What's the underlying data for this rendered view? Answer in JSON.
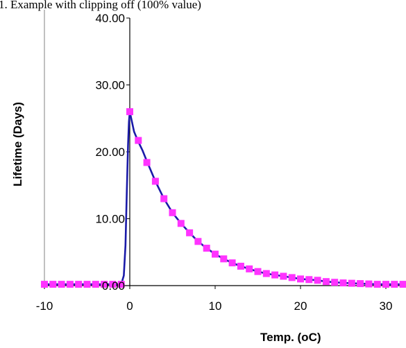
{
  "heading": "1. Example with clipping off (100% value)",
  "chart_data": {
    "type": "line",
    "title": "",
    "xlabel": "Temp. (oC)",
    "ylabel": "Lifetime (Days)",
    "xlim": [
      -10,
      32
    ],
    "ylim": [
      0,
      40
    ],
    "x_ticks": [
      {
        "value": -10,
        "label": "-10"
      },
      {
        "value": 0,
        "label": "0"
      },
      {
        "value": 10,
        "label": "10"
      },
      {
        "value": 20,
        "label": "20"
      },
      {
        "value": 30,
        "label": "30"
      }
    ],
    "y_ticks": [
      {
        "value": 0,
        "label": "0.00"
      },
      {
        "value": 10,
        "label": "10.00"
      },
      {
        "value": 20,
        "label": "20.00"
      },
      {
        "value": 30,
        "label": "30.00"
      },
      {
        "value": 40,
        "label": "40.00"
      }
    ],
    "grid": false,
    "legend": "none",
    "line_color": "#1a1aa8",
    "marker_color": "#ff33ff",
    "series": [
      {
        "line_x": [
          -10,
          -9,
          -8,
          -7,
          -6,
          -5,
          -4,
          -3,
          -2,
          -1,
          -0.7,
          -0.5,
          -0.35,
          -0.2,
          -0.1,
          0,
          0.25,
          0.5,
          1,
          1.5,
          2,
          3,
          4,
          5,
          6,
          7,
          8,
          9,
          10,
          11,
          12,
          13,
          14,
          15,
          16,
          17,
          18,
          19,
          20,
          21,
          22,
          23,
          24,
          25,
          26,
          27,
          28,
          29,
          30,
          31,
          32
        ],
        "line_y": [
          0.2,
          0.2,
          0.2,
          0.2,
          0.2,
          0.2,
          0.2,
          0.2,
          0.2,
          0.2,
          1.5,
          6,
          14,
          21,
          24.5,
          26,
          24.5,
          23,
          21.5,
          20.2,
          18.6,
          15.6,
          13.0,
          10.9,
          9.3,
          7.9,
          6.6,
          5.6,
          4.7,
          4.0,
          3.4,
          2.9,
          2.5,
          2.1,
          1.8,
          1.6,
          1.4,
          1.2,
          1.0,
          0.9,
          0.8,
          0.6,
          0.5,
          0.4,
          0.35,
          0.3,
          0.25,
          0.2,
          0.2,
          0.2,
          0.2
        ],
        "marker_x": [
          -10,
          -9,
          -8,
          -7,
          -6,
          -5,
          -4,
          -3,
          -2,
          -1,
          0,
          1,
          2,
          3,
          4,
          5,
          6,
          7,
          8,
          9,
          10,
          11,
          12,
          13,
          14,
          15,
          16,
          17,
          18,
          19,
          20,
          21,
          22,
          23,
          24,
          25,
          26,
          27,
          28,
          29,
          30,
          31,
          32
        ],
        "marker_y": [
          0.2,
          0.2,
          0.2,
          0.2,
          0.2,
          0.2,
          0.2,
          0.2,
          0.2,
          0.2,
          26.0,
          21.7,
          18.4,
          15.6,
          13.0,
          10.9,
          9.3,
          7.9,
          6.6,
          5.6,
          4.7,
          4.0,
          3.4,
          2.9,
          2.5,
          2.1,
          1.8,
          1.6,
          1.4,
          1.2,
          1.0,
          0.9,
          0.8,
          0.6,
          0.5,
          0.4,
          0.35,
          0.3,
          0.25,
          0.2,
          0.2,
          0.2,
          0.2
        ]
      }
    ]
  }
}
